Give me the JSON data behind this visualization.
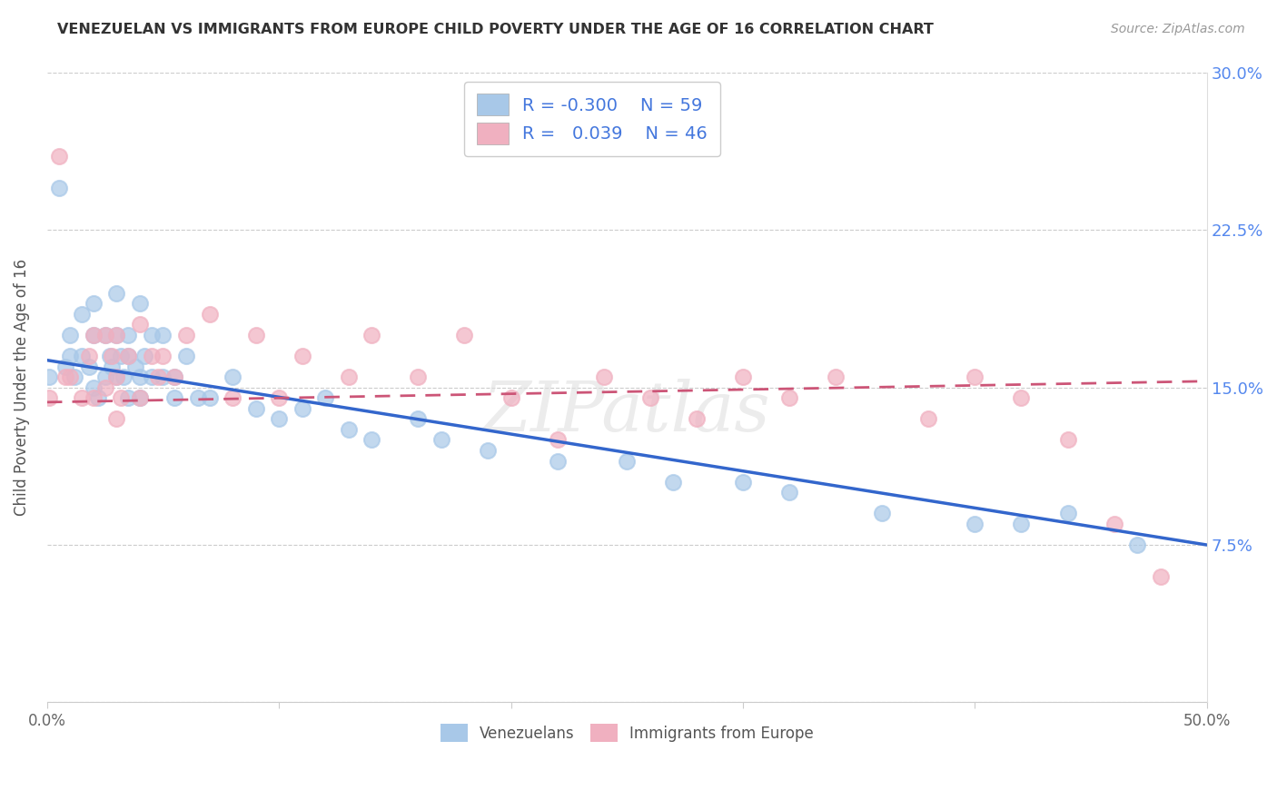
{
  "title": "VENEZUELAN VS IMMIGRANTS FROM EUROPE CHILD POVERTY UNDER THE AGE OF 16 CORRELATION CHART",
  "source": "Source: ZipAtlas.com",
  "ylabel": "Child Poverty Under the Age of 16",
  "xlim": [
    0.0,
    0.5
  ],
  "ylim": [
    0.0,
    0.3
  ],
  "blue_color": "#a8c8e8",
  "pink_color": "#f0b0c0",
  "line_blue": "#3366cc",
  "line_pink": "#cc5577",
  "watermark": "ZIPatlas",
  "venezuelan_x": [
    0.001,
    0.005,
    0.008,
    0.01,
    0.01,
    0.012,
    0.015,
    0.015,
    0.018,
    0.02,
    0.02,
    0.02,
    0.022,
    0.025,
    0.025,
    0.027,
    0.028,
    0.03,
    0.03,
    0.03,
    0.032,
    0.033,
    0.035,
    0.035,
    0.035,
    0.038,
    0.04,
    0.04,
    0.04,
    0.042,
    0.045,
    0.045,
    0.05,
    0.05,
    0.055,
    0.055,
    0.06,
    0.065,
    0.07,
    0.08,
    0.09,
    0.1,
    0.11,
    0.12,
    0.13,
    0.14,
    0.16,
    0.17,
    0.19,
    0.22,
    0.25,
    0.27,
    0.3,
    0.32,
    0.36,
    0.4,
    0.42,
    0.44,
    0.47
  ],
  "venezuelan_y": [
    0.155,
    0.245,
    0.16,
    0.175,
    0.165,
    0.155,
    0.185,
    0.165,
    0.16,
    0.19,
    0.175,
    0.15,
    0.145,
    0.175,
    0.155,
    0.165,
    0.16,
    0.195,
    0.175,
    0.155,
    0.165,
    0.155,
    0.175,
    0.165,
    0.145,
    0.16,
    0.19,
    0.155,
    0.145,
    0.165,
    0.175,
    0.155,
    0.175,
    0.155,
    0.155,
    0.145,
    0.165,
    0.145,
    0.145,
    0.155,
    0.14,
    0.135,
    0.14,
    0.145,
    0.13,
    0.125,
    0.135,
    0.125,
    0.12,
    0.115,
    0.115,
    0.105,
    0.105,
    0.1,
    0.09,
    0.085,
    0.085,
    0.09,
    0.075
  ],
  "europe_x": [
    0.001,
    0.005,
    0.008,
    0.01,
    0.015,
    0.018,
    0.02,
    0.02,
    0.025,
    0.025,
    0.028,
    0.03,
    0.03,
    0.03,
    0.032,
    0.035,
    0.04,
    0.04,
    0.045,
    0.048,
    0.05,
    0.055,
    0.06,
    0.07,
    0.08,
    0.09,
    0.1,
    0.11,
    0.13,
    0.14,
    0.16,
    0.18,
    0.2,
    0.22,
    0.24,
    0.26,
    0.28,
    0.3,
    0.32,
    0.34,
    0.38,
    0.4,
    0.42,
    0.44,
    0.46,
    0.48
  ],
  "europe_y": [
    0.145,
    0.26,
    0.155,
    0.155,
    0.145,
    0.165,
    0.175,
    0.145,
    0.175,
    0.15,
    0.165,
    0.175,
    0.155,
    0.135,
    0.145,
    0.165,
    0.18,
    0.145,
    0.165,
    0.155,
    0.165,
    0.155,
    0.175,
    0.185,
    0.145,
    0.175,
    0.145,
    0.165,
    0.155,
    0.175,
    0.155,
    0.175,
    0.145,
    0.125,
    0.155,
    0.145,
    0.135,
    0.155,
    0.145,
    0.155,
    0.135,
    0.155,
    0.145,
    0.125,
    0.085,
    0.06
  ],
  "blue_line_x0": 0.0,
  "blue_line_y0": 0.163,
  "blue_line_x1": 0.5,
  "blue_line_y1": 0.075,
  "pink_line_x0": 0.0,
  "pink_line_y0": 0.143,
  "pink_line_x1": 0.5,
  "pink_line_y1": 0.153
}
